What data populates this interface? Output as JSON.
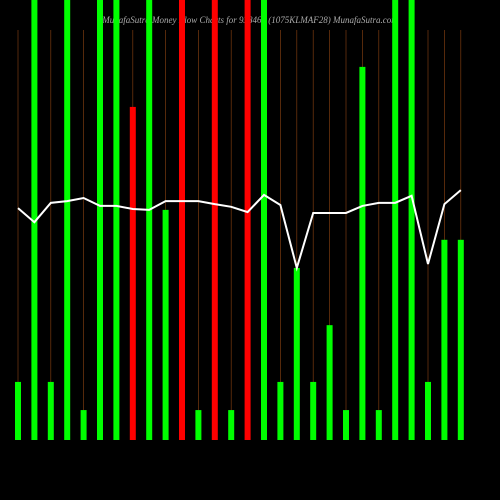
{
  "chart_data": {
    "type": "bar",
    "title": "MunafaSutra Money Flow Charts for 938464 (1075KLMAF28) MunafaSutra.com",
    "categories": [
      null,
      null,
      null,
      null,
      null,
      null,
      null,
      null,
      null,
      null,
      null,
      null,
      null,
      null,
      null,
      null,
      null,
      null,
      null,
      null,
      null,
      null,
      null,
      null,
      null,
      null,
      null,
      null
    ],
    "ylim": [
      0,
      100
    ],
    "series": [
      {
        "values": [
          13.2,
          100,
          13.2,
          100,
          6.8,
          100,
          100,
          75.7,
          100,
          52.3,
          100,
          6.8,
          100,
          6.8,
          100,
          100,
          13.2,
          39.1,
          13.2,
          26.1,
          6.8,
          84.8,
          6.8,
          100,
          100,
          13.2,
          45.5,
          45.5
        ],
        "colors": [
          "#00ff00",
          "#00ff00",
          "#00ff00",
          "#00ff00",
          "#00ff00",
          "#00ff00",
          "#00ff00",
          "#ff0000",
          "#00ff00",
          "#00ff00",
          "#ff0000",
          "#00ff00",
          "#ff0000",
          "#00ff00",
          "#ff0000",
          "#00ff00",
          "#00ff00",
          "#00ff00",
          "#00ff00",
          "#00ff00",
          "#00ff00",
          "#00ff00",
          "#00ff00",
          "#00ff00",
          "#00ff00",
          "#00ff00",
          "#00ff00",
          "#00ff00"
        ]
      },
      {
        "type": "line",
        "color": "#ffffff",
        "values": [
          52.7,
          49.5,
          53.9,
          54.3,
          55,
          53.2,
          53.2,
          52.5,
          52.3,
          54.3,
          54.3,
          54.3,
          53.6,
          53,
          51.8,
          55.7,
          53.4,
          39.1,
          51.6,
          51.6,
          51.6,
          53.2,
          53.9,
          53.9,
          55.5,
          40,
          53.6,
          56.8
        ]
      }
    ]
  }
}
